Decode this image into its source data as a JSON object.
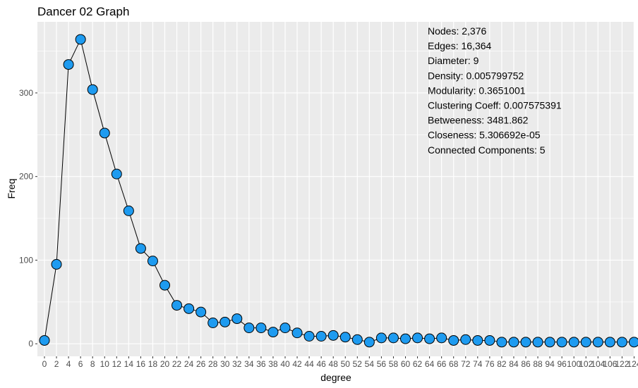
{
  "chart_data": {
    "type": "line",
    "title": "Dancer 02 Graph",
    "xlabel": "degree",
    "ylabel": "Freq",
    "ylim": [
      -15,
      385
    ],
    "y_ticks": [
      0,
      100,
      200,
      300
    ],
    "grid": true,
    "legend": "none",
    "x": [
      "0",
      "2",
      "4",
      "6",
      "8",
      "10",
      "12",
      "14",
      "16",
      "18",
      "20",
      "22",
      "24",
      "26",
      "28",
      "30",
      "32",
      "34",
      "36",
      "38",
      "40",
      "42",
      "44",
      "46",
      "48",
      "50",
      "52",
      "54",
      "56",
      "58",
      "60",
      "62",
      "64",
      "66",
      "68",
      "72",
      "74",
      "76",
      "82",
      "84",
      "86",
      "88",
      "94",
      "96",
      "100",
      "102",
      "104",
      "106",
      "122",
      "124"
    ],
    "series": [
      {
        "values": [
          4,
          95,
          334,
          364,
          304,
          252,
          203,
          159,
          114,
          99,
          70,
          46,
          42,
          38,
          25,
          26,
          30,
          19,
          19,
          14,
          19,
          13,
          9,
          9,
          10,
          8,
          5,
          2,
          7,
          7,
          6,
          7,
          6,
          7,
          4,
          5,
          4,
          4,
          2,
          2,
          2,
          2,
          2,
          2,
          2,
          2,
          2,
          2,
          2,
          2
        ]
      }
    ],
    "annotation": [
      "Nodes: 2,376",
      "Edges: 16,364",
      "Diameter: 9",
      "Density: 0.005799752",
      "Modularity: 0.3651001",
      "Clustering Coeff: 0.007575391",
      "Betweeness: 3481.862",
      "Closeness: 5.306692e-05",
      "Connected Components: 5"
    ],
    "colors": {
      "panel": "#ebebeb",
      "grid": "#ffffff",
      "point_fill": "#1e9bf0",
      "point_stroke": "#000000",
      "line": "#000000"
    }
  }
}
